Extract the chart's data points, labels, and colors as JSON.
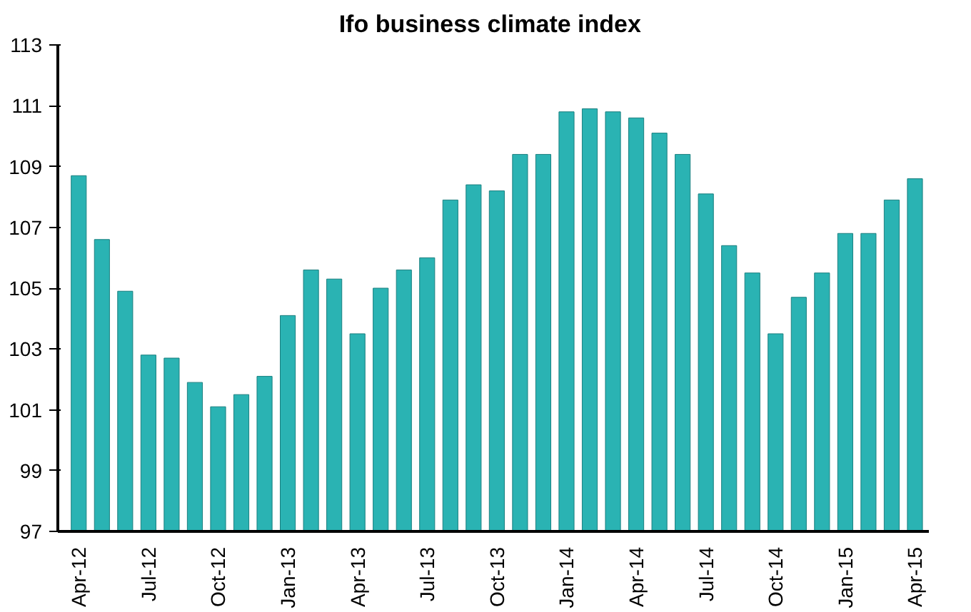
{
  "chart_data": {
    "type": "bar",
    "title": "Ifo business  climate index",
    "categories": [
      "Apr-12",
      null,
      null,
      "Jul-12",
      null,
      null,
      "Oct-12",
      null,
      null,
      "Jan-13",
      null,
      null,
      "Apr-13",
      null,
      null,
      "Jul-13",
      null,
      null,
      "Oct-13",
      null,
      null,
      "Jan-14",
      null,
      null,
      "Apr-14",
      null,
      null,
      "Jul-14",
      null,
      null,
      "Oct-14",
      null,
      null,
      "Jan-15",
      null,
      null,
      "Apr-15"
    ],
    "values": [
      108.7,
      106.6,
      104.9,
      102.8,
      102.7,
      101.9,
      101.1,
      101.5,
      102.1,
      104.1,
      105.6,
      105.3,
      103.5,
      105.0,
      105.6,
      106.0,
      107.9,
      108.4,
      108.2,
      109.4,
      109.4,
      110.8,
      110.9,
      110.8,
      110.6,
      110.1,
      109.4,
      108.1,
      106.4,
      105.5,
      103.5,
      104.7,
      105.5,
      106.8,
      106.8,
      107.9,
      108.6
    ],
    "color": "#2ab3b3",
    "ylim": [
      97,
      113
    ],
    "yticks": [
      97,
      99,
      101,
      103,
      105,
      107,
      109,
      111,
      113
    ],
    "grid": false
  }
}
